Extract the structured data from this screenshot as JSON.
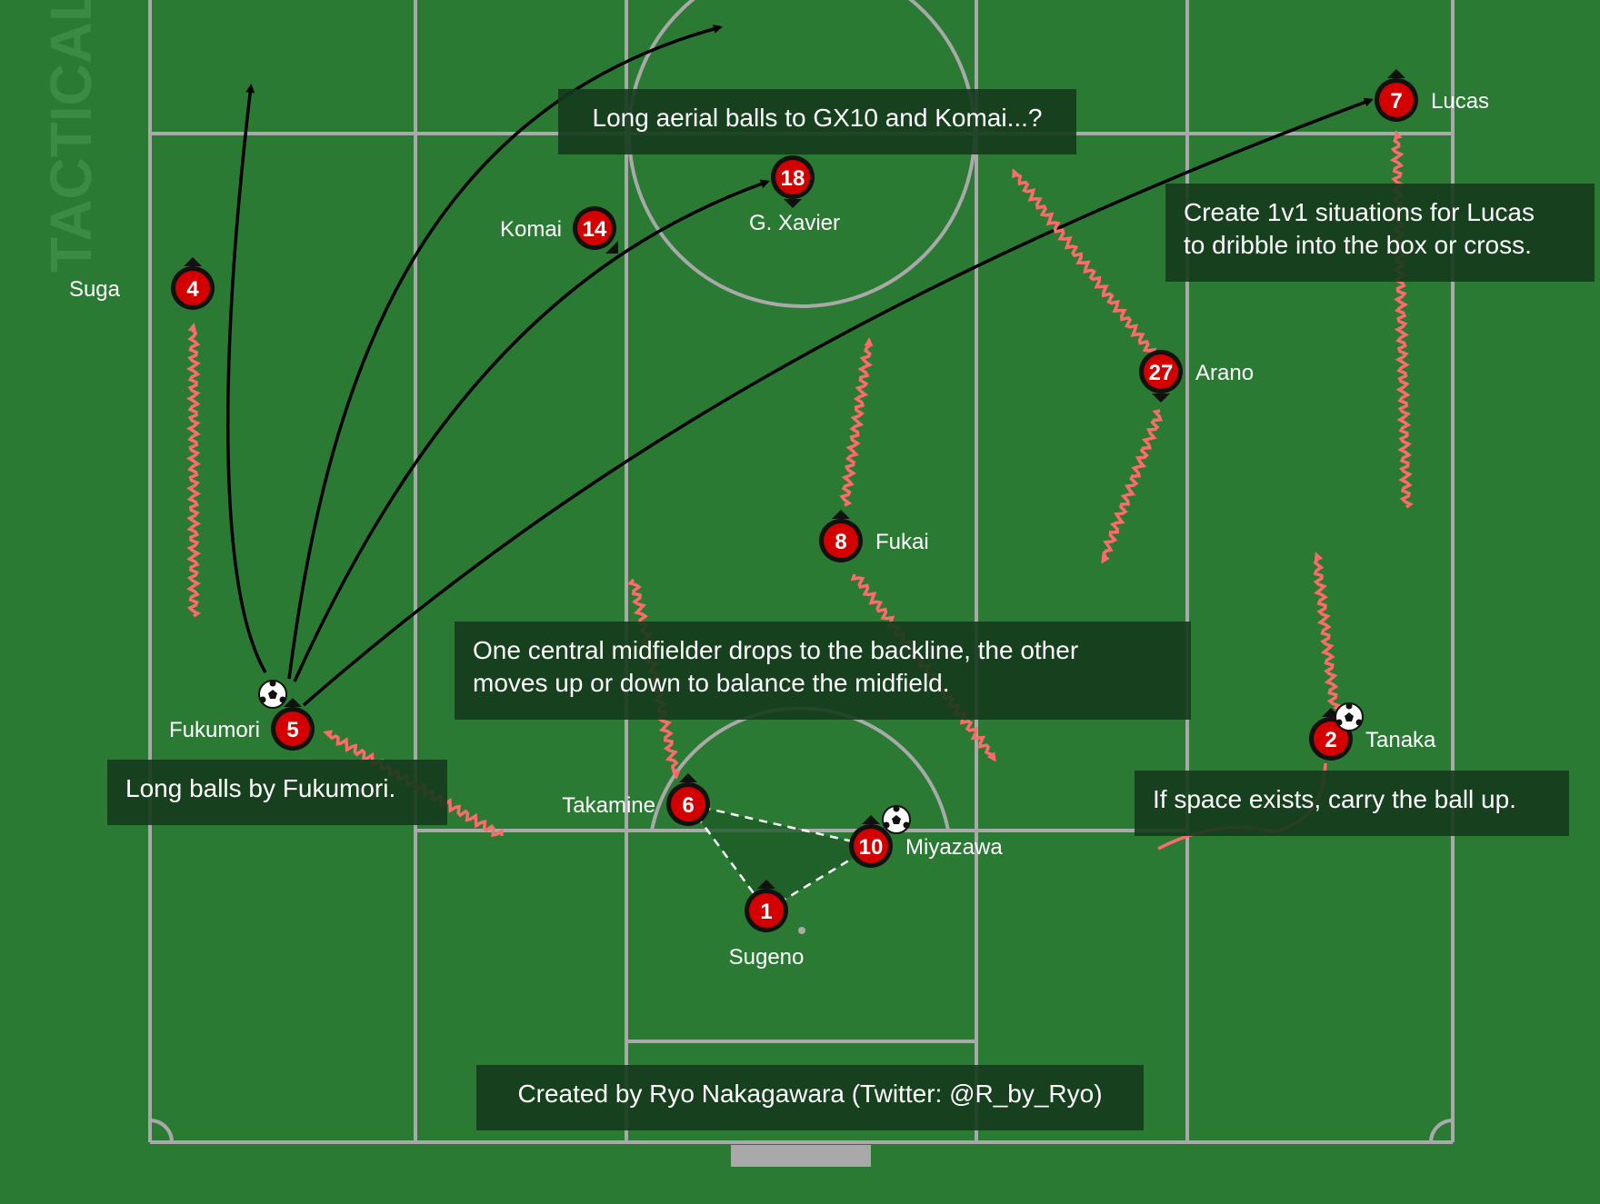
{
  "watermark": "TACTICALista",
  "colors": {
    "pitch": "#2a7a34",
    "lines": "#a9a9a9",
    "player": "#d40000",
    "run": "#ff6b6b",
    "pass": "#000000",
    "note_bg": "#143a1c"
  },
  "players": [
    {
      "id": "p4",
      "number": "4",
      "name": "Suga"
    },
    {
      "id": "p5",
      "number": "5",
      "name": "Fukumori"
    },
    {
      "id": "p14",
      "number": "14",
      "name": "Komai"
    },
    {
      "id": "p18",
      "number": "18",
      "name": "G. Xavier"
    },
    {
      "id": "p7",
      "number": "7",
      "name": "Lucas"
    },
    {
      "id": "p27",
      "number": "27",
      "name": "Arano"
    },
    {
      "id": "p8",
      "number": "8",
      "name": "Fukai"
    },
    {
      "id": "p6",
      "number": "6",
      "name": "Takamine"
    },
    {
      "id": "p10",
      "number": "10",
      "name": "Miyazawa"
    },
    {
      "id": "p1",
      "number": "1",
      "name": "Sugeno"
    },
    {
      "id": "p2",
      "number": "2",
      "name": "Tanaka"
    }
  ],
  "notes": {
    "aerial": "Long aerial balls to GX10 and Komai...?",
    "lucas": "Create 1v1 situations for Lucas\nto dribble into the box or cross.",
    "midfield": "One central midfielder drops to the backline, the other\nmoves up or down to balance the midfield.",
    "fukumori": "Long balls by Fukumori.",
    "tanaka": "If space exists, carry the ball up.",
    "credit": "Created by Ryo Nakagawara (Twitter: @R_by_Ryo)"
  }
}
